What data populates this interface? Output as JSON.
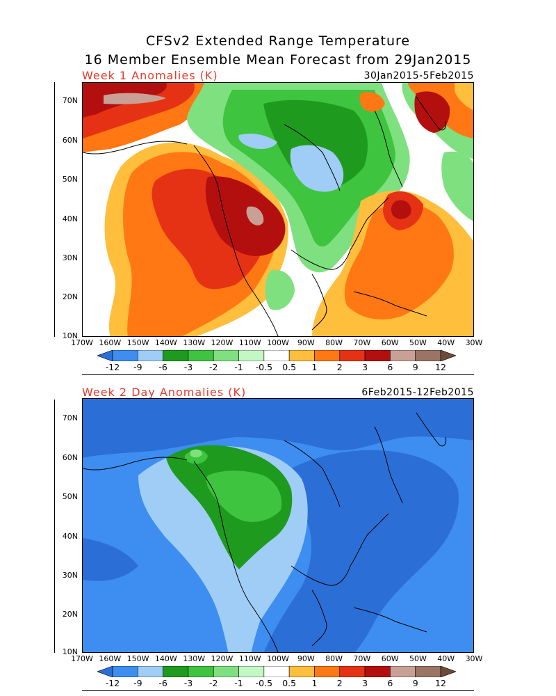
{
  "title_line1": "CFSv2 Extended Range Temperature",
  "title_line2": "16 Member Ensemble Mean Forecast from 29Jan2015",
  "panel1": {
    "label": "Week 1 Anomalies (K)",
    "dates": "30Jan2015-5Feb2015"
  },
  "panel2": {
    "label": "Week 2 Day Anomalies (K)",
    "dates": "6Feb2015-12Feb2015"
  },
  "lat_labels": [
    "70N",
    "60N",
    "50N",
    "40N",
    "30N",
    "20N",
    "10N"
  ],
  "lon_labels": [
    "170W",
    "160W",
    "150W",
    "140W",
    "130W",
    "120W",
    "110W",
    "100W",
    "90W",
    "80W",
    "70W",
    "60W",
    "50W",
    "40W",
    "30W"
  ],
  "colorbar": {
    "labels": [
      "-12",
      "-9",
      "-6",
      "-3",
      "-2",
      "-1",
      "-0.5",
      "0.5",
      "1",
      "2",
      "3",
      "6",
      "9",
      "12"
    ],
    "colors": [
      "#2b6fd6",
      "#3d8ef0",
      "#9fcdf6",
      "#1e9b1e",
      "#3ec43e",
      "#7fe07f",
      "#c3f7c3",
      "#ffffff",
      "#ffbe3c",
      "#ff7814",
      "#e63214",
      "#b40f0f",
      "#c8a096",
      "#9a7464",
      "#6e4a38"
    ]
  }
}
